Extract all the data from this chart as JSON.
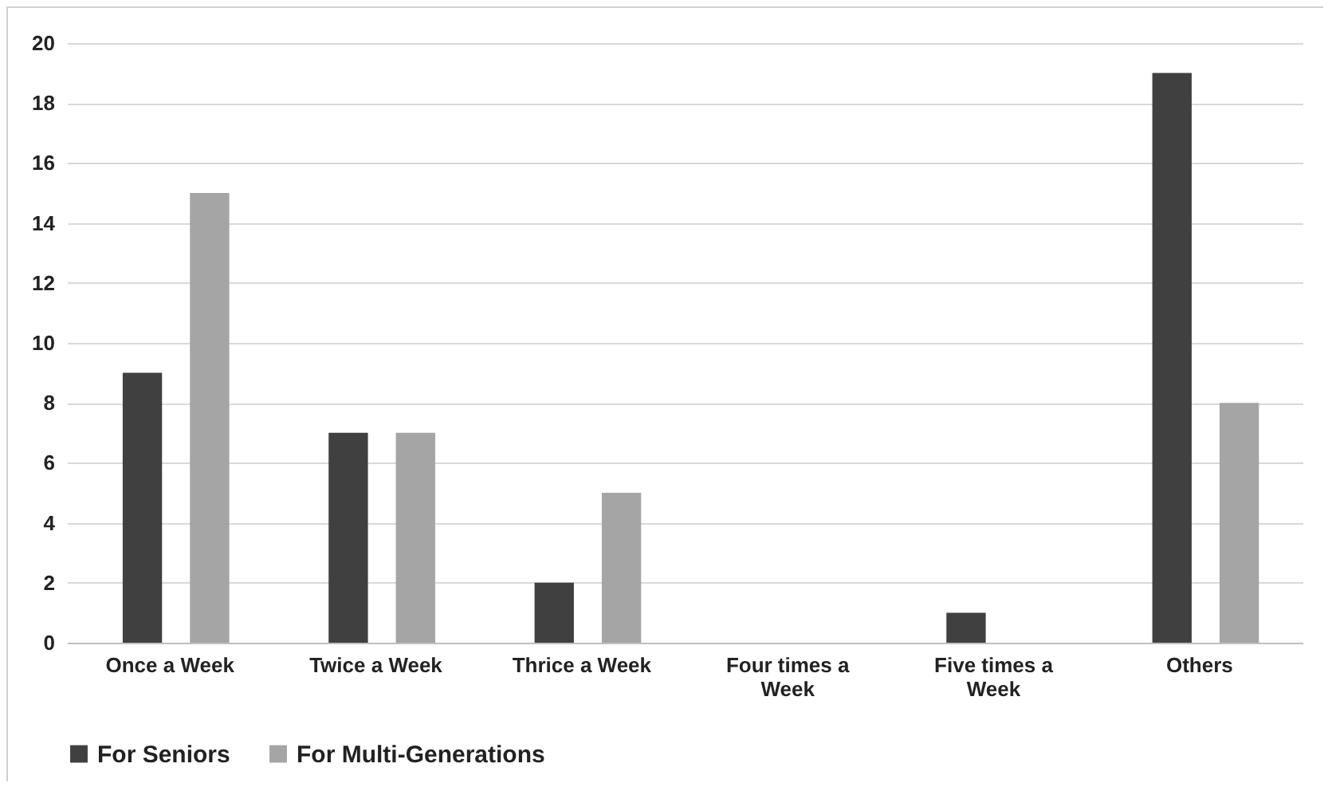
{
  "chart_data": {
    "type": "bar",
    "categories": [
      "Once a Week",
      "Twice a Week",
      "Thrice a Week",
      "Four times a Week",
      "Five times a Week",
      "Others"
    ],
    "series": [
      {
        "name": "For Seniors",
        "color": "#404040",
        "values": [
          9,
          7,
          2,
          0,
          1,
          19
        ]
      },
      {
        "name": "For Multi-Generations",
        "color": "#a5a5a5",
        "values": [
          15,
          7,
          5,
          0,
          0,
          8
        ]
      }
    ],
    "ylim": [
      0,
      20
    ],
    "yticks": [
      0,
      2,
      4,
      6,
      8,
      10,
      12,
      14,
      16,
      18,
      20
    ],
    "grid": "y",
    "legend": "bottom"
  }
}
